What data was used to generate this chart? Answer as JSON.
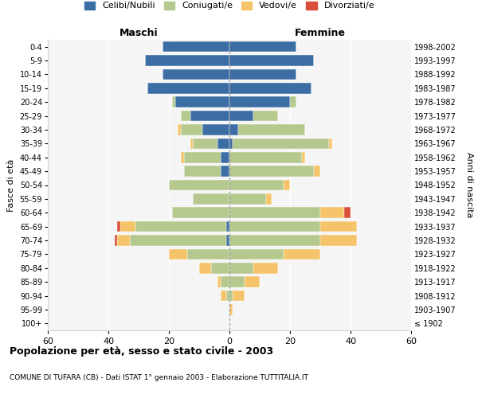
{
  "age_groups": [
    "100+",
    "95-99",
    "90-94",
    "85-89",
    "80-84",
    "75-79",
    "70-74",
    "65-69",
    "60-64",
    "55-59",
    "50-54",
    "45-49",
    "40-44",
    "35-39",
    "30-34",
    "25-29",
    "20-24",
    "15-19",
    "10-14",
    "5-9",
    "0-4"
  ],
  "birth_years": [
    "≤ 1902",
    "1903-1907",
    "1908-1912",
    "1913-1917",
    "1918-1922",
    "1923-1927",
    "1928-1932",
    "1933-1937",
    "1938-1942",
    "1943-1947",
    "1948-1952",
    "1953-1957",
    "1958-1962",
    "1963-1967",
    "1968-1972",
    "1973-1977",
    "1978-1982",
    "1983-1987",
    "1988-1992",
    "1993-1997",
    "1998-2002"
  ],
  "male": {
    "celibi": [
      0,
      0,
      0,
      0,
      0,
      0,
      1,
      1,
      0,
      0,
      0,
      3,
      3,
      4,
      9,
      13,
      18,
      27,
      22,
      28,
      22
    ],
    "coniugati": [
      0,
      0,
      1,
      3,
      6,
      14,
      32,
      30,
      19,
      12,
      20,
      12,
      12,
      8,
      7,
      3,
      1,
      0,
      0,
      0,
      0
    ],
    "vedovi": [
      0,
      0,
      2,
      1,
      4,
      6,
      4,
      5,
      0,
      0,
      0,
      0,
      1,
      1,
      1,
      0,
      0,
      0,
      0,
      0,
      0
    ],
    "divorziati": [
      0,
      0,
      0,
      0,
      0,
      0,
      1,
      1,
      0,
      0,
      0,
      0,
      0,
      0,
      0,
      0,
      0,
      0,
      0,
      0,
      0
    ]
  },
  "female": {
    "nubili": [
      0,
      0,
      0,
      0,
      0,
      0,
      0,
      0,
      0,
      0,
      0,
      0,
      0,
      1,
      3,
      8,
      20,
      27,
      22,
      28,
      22
    ],
    "coniugate": [
      0,
      0,
      1,
      5,
      8,
      18,
      30,
      30,
      30,
      12,
      18,
      28,
      24,
      32,
      22,
      8,
      2,
      0,
      0,
      0,
      0
    ],
    "vedove": [
      0,
      1,
      4,
      5,
      8,
      12,
      12,
      12,
      8,
      2,
      2,
      2,
      1,
      1,
      0,
      0,
      0,
      0,
      0,
      0,
      0
    ],
    "divorziate": [
      0,
      0,
      0,
      0,
      0,
      0,
      0,
      0,
      2,
      0,
      0,
      0,
      0,
      0,
      0,
      0,
      0,
      0,
      0,
      0,
      0
    ]
  },
  "colors": {
    "celibi": "#3c6ea5",
    "coniugati": "#b5c98e",
    "vedovi": "#f5c46a",
    "divorziati": "#d94f3b"
  },
  "xlim": 60,
  "title": "Popolazione per età, sesso e stato civile - 2003",
  "subtitle": "COMUNE DI TUFARA (CB) - Dati ISTAT 1° gennaio 2003 - Elaborazione TUTTITALIA.IT",
  "ylabel_left": "Fasce di età",
  "ylabel_right": "Anni di nascita",
  "xlabel_left": "Maschi",
  "xlabel_right": "Femmine",
  "legend_labels": [
    "Celibi/Nubili",
    "Coniugati/e",
    "Vedovi/e",
    "Divorziati/e"
  ],
  "bg_color": "#f5f5f5"
}
